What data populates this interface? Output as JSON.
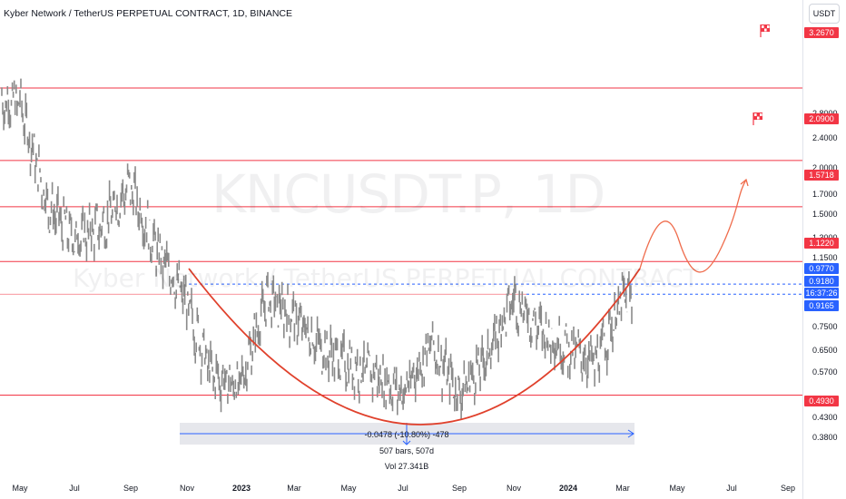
{
  "header": {
    "title": "Kyber Network / TetherUS PERPETUAL CONTRACT, 1D, BINANCE",
    "watermark_main": "KNCUSDT.P, 1D",
    "watermark_sub": "Kyber Network / TetherUS PERPETUAL CONTRACT"
  },
  "price_axis": {
    "currency": "USDT",
    "ticks": [
      "2.8000",
      "2.4000",
      "2.0000",
      "1.7000",
      "1.5000",
      "1.3000",
      "1.1500",
      "0.7500",
      "0.6500",
      "0.5700",
      "0.4300",
      "0.3800"
    ],
    "tags": [
      {
        "label": "3.2670",
        "value": 3.267,
        "color": "#f23645"
      },
      {
        "label": "2.0900",
        "value": 2.09,
        "color": "#f23645"
      },
      {
        "label": "1.5718",
        "value": 1.5718,
        "color": "#f23645"
      },
      {
        "label": "1.1220",
        "value": 1.122,
        "color": "#f23645"
      },
      {
        "label": "0.9770",
        "value": 0.977,
        "color": "#2962ff"
      },
      {
        "label": "0.9180",
        "value": 0.918,
        "color": "#2962ff"
      },
      {
        "label": "16:37:26",
        "value": 0.918,
        "color": "#2962ff"
      },
      {
        "label": "0.9165",
        "value": 0.9165,
        "color": "#2962ff"
      },
      {
        "label": "0.4930",
        "value": 0.493,
        "color": "#f23645"
      }
    ]
  },
  "time_axis": {
    "ticks": [
      {
        "label": "May",
        "bold": false
      },
      {
        "label": "Jul",
        "bold": false
      },
      {
        "label": "Sep",
        "bold": false
      },
      {
        "label": "Nov",
        "bold": false
      },
      {
        "label": "2023",
        "bold": true
      },
      {
        "label": "Mar",
        "bold": false
      },
      {
        "label": "May",
        "bold": false
      },
      {
        "label": "Jul",
        "bold": false
      },
      {
        "label": "Sep",
        "bold": false
      },
      {
        "label": "Nov",
        "bold": false
      },
      {
        "label": "2024",
        "bold": true
      },
      {
        "label": "Mar",
        "bold": false
      },
      {
        "label": "May",
        "bold": false
      },
      {
        "label": "Jul",
        "bold": false
      },
      {
        "label": "Sep",
        "bold": false
      }
    ]
  },
  "measurement": {
    "line1": "-0.0478 (-10.80%) -478",
    "line2": "507 bars, 507d",
    "line3": "Vol 27.341B"
  },
  "colors": {
    "candles": "#8a8a8a",
    "resistance": "#f23645",
    "cup": "#e0412c",
    "projection": "#ef6c4c",
    "dashed": "#2962ff"
  },
  "chart_data": {
    "type": "line",
    "title": "Kyber Network / TetherUS PERPETUAL CONTRACT, 1D, BINANCE",
    "ylabel": "USDT",
    "yscale": "log",
    "x_period": "May 2022 – Sep 2024",
    "horizontal_levels": [
      3.267,
      2.09,
      1.5718,
      1.122,
      0.977,
      0.918,
      0.493
    ],
    "current_price": 0.9165,
    "series": [
      {
        "x": [
          "May 2022",
          "Jun 2022",
          "Jul 2022",
          "Aug 2022",
          "Sep 2022",
          "Oct 2022",
          "Nov 2022",
          "Dec 2022",
          "Jan 2023",
          "Feb 2023",
          "Mar 2023",
          "Apr 2023",
          "May 2023",
          "Jun 2023",
          "Jul 2023",
          "Aug 2023",
          "Sep 2023",
          "Oct 2023",
          "Nov 2023",
          "Dec 2023",
          "Jan 2024",
          "Feb 2024",
          "Mar 2024"
        ],
        "values": [
          3.0,
          1.6,
          1.3,
          1.4,
          1.8,
          1.2,
          0.9,
          0.56,
          0.52,
          0.9,
          0.8,
          0.66,
          0.6,
          0.56,
          0.5,
          0.68,
          0.5,
          0.62,
          0.9,
          0.74,
          0.66,
          0.6,
          0.9
        ]
      }
    ]
  }
}
